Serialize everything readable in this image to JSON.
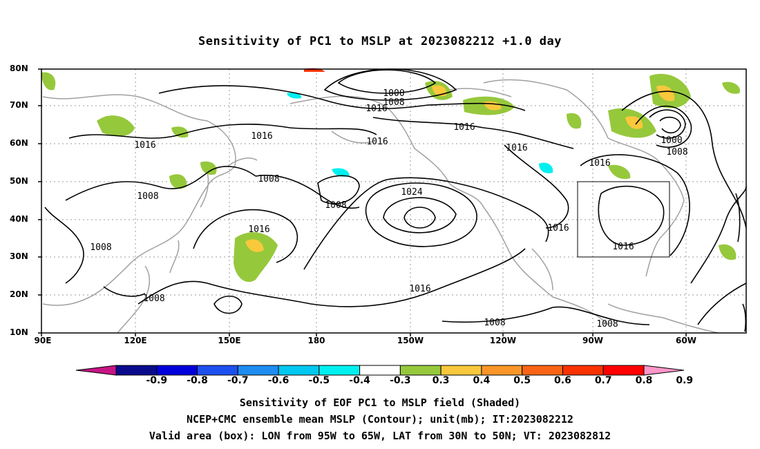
{
  "title": "Sensitivity of PC1 to MSLP at 2023082212 +1.0 day",
  "lat_labels": [
    "80N",
    "70N",
    "60N",
    "50N",
    "40N",
    "30N",
    "20N",
    "10N"
  ],
  "lon_labels": [
    "90E",
    "120E",
    "150E",
    "180",
    "150W",
    "120W",
    "90W",
    "60W"
  ],
  "contour_labels": [
    "1000",
    "1008",
    "1016",
    "1016",
    "1016",
    "1016",
    "1016",
    "1016",
    "1000",
    "1008",
    "1016",
    "1008",
    "1008",
    "1008",
    "1024",
    "1016",
    "1016",
    "1016",
    "1008",
    "1008",
    "1008",
    "1008",
    "1016"
  ],
  "colorbar": {
    "labels": [
      "-0.9",
      "-0.8",
      "-0.7",
      "-0.6",
      "-0.5",
      "-0.4",
      "-0.3",
      "0.3",
      "0.4",
      "0.5",
      "0.6",
      "0.7",
      "0.8",
      "0.9"
    ],
    "colors": [
      "#c71585",
      "#0a0a8c",
      "#0000dc",
      "#1e50f0",
      "#1e8cf0",
      "#00c8f0",
      "#00f0f0",
      "#ffffff",
      "#96c83c",
      "#fac83c",
      "#fa9628",
      "#fa6414",
      "#fa3200",
      "#ff0000",
      "#ff96c8"
    ]
  },
  "captions": [
    "Sensitivity of EOF PC1 to MSLP field (Shaded)",
    "NCEP+CMC ensemble mean MSLP (Contour); unit(mb); IT:2023082212",
    "Valid area (box): LON from 95W to 65W, LAT from 30N to 50N; VT: 2023082812"
  ]
}
